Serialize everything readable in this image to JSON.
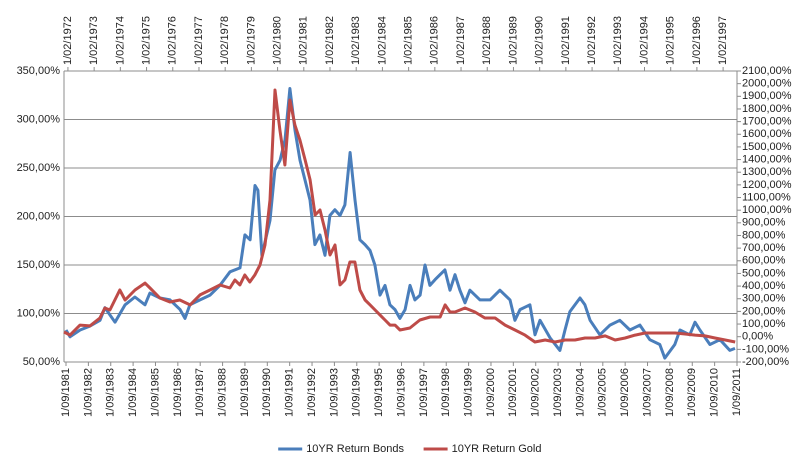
{
  "chart_data": {
    "type": "line",
    "xlim": [
      1981.58,
      2011.67
    ],
    "xticks": [
      {
        "value": 1981.67,
        "label": "1/09/1981"
      },
      {
        "value": 1982.67,
        "label": "1/09/1982"
      },
      {
        "value": 1983.67,
        "label": "1/09/1983"
      },
      {
        "value": 1984.67,
        "label": "1/09/1984"
      },
      {
        "value": 1985.67,
        "label": "1/09/1985"
      },
      {
        "value": 1986.67,
        "label": "1/09/1986"
      },
      {
        "value": 1987.67,
        "label": "1/09/1987"
      },
      {
        "value": 1988.67,
        "label": "1/09/1988"
      },
      {
        "value": 1989.67,
        "label": "1/09/1989"
      },
      {
        "value": 1990.67,
        "label": "1/09/1990"
      },
      {
        "value": 1991.67,
        "label": "1/09/1991"
      },
      {
        "value": 1992.67,
        "label": "1/09/1992"
      },
      {
        "value": 1993.67,
        "label": "1/09/1993"
      },
      {
        "value": 1994.67,
        "label": "1/09/1994"
      },
      {
        "value": 1995.67,
        "label": "1/09/1995"
      },
      {
        "value": 1996.67,
        "label": "1/09/1996"
      },
      {
        "value": 1997.67,
        "label": "1/09/1997"
      },
      {
        "value": 1998.67,
        "label": "1/09/1998"
      },
      {
        "value": 1999.67,
        "label": "1/09/1999"
      },
      {
        "value": 2000.67,
        "label": "1/09/2000"
      },
      {
        "value": 2001.67,
        "label": "1/09/2001"
      },
      {
        "value": 2002.67,
        "label": "1/09/2002"
      },
      {
        "value": 2003.67,
        "label": "1/09/2003"
      },
      {
        "value": 2004.67,
        "label": "1/09/2004"
      },
      {
        "value": 2005.67,
        "label": "1/09/2005"
      },
      {
        "value": 2006.67,
        "label": "1/09/2006"
      },
      {
        "value": 2007.67,
        "label": "1/09/2007"
      },
      {
        "value": 2008.67,
        "label": "1/09/2008"
      },
      {
        "value": 2009.67,
        "label": "1/09/2009"
      },
      {
        "value": 2010.67,
        "label": "1/09/2010"
      },
      {
        "value": 2011.67,
        "label": "1/09/2011"
      }
    ],
    "x2lim": [
      1971.93,
      1997.61
    ],
    "x2ticks": [
      {
        "value": 1972.08,
        "label": "1/02/1972"
      },
      {
        "value": 1973.08,
        "label": "1/02/1973"
      },
      {
        "value": 1974.08,
        "label": "1/02/1974"
      },
      {
        "value": 1975.08,
        "label": "1/02/1975"
      },
      {
        "value": 1976.08,
        "label": "1/02/1976"
      },
      {
        "value": 1977.08,
        "label": "1/02/1977"
      },
      {
        "value": 1978.08,
        "label": "1/02/1978"
      },
      {
        "value": 1979.08,
        "label": "1/02/1979"
      },
      {
        "value": 1980.08,
        "label": "1/02/1980"
      },
      {
        "value": 1981.08,
        "label": "1/02/1981"
      },
      {
        "value": 1982.08,
        "label": "1/02/1982"
      },
      {
        "value": 1983.08,
        "label": "1/02/1983"
      },
      {
        "value": 1984.08,
        "label": "1/02/1984"
      },
      {
        "value": 1985.08,
        "label": "1/02/1985"
      },
      {
        "value": 1986.08,
        "label": "1/02/1986"
      },
      {
        "value": 1987.08,
        "label": "1/02/1987"
      },
      {
        "value": 1988.08,
        "label": "1/02/1988"
      },
      {
        "value": 1989.08,
        "label": "1/02/1989"
      },
      {
        "value": 1990.08,
        "label": "1/02/1990"
      },
      {
        "value": 1991.08,
        "label": "1/02/1991"
      },
      {
        "value": 1992.08,
        "label": "1/02/1992"
      },
      {
        "value": 1993.08,
        "label": "1/02/1993"
      },
      {
        "value": 1994.08,
        "label": "1/02/1994"
      },
      {
        "value": 1995.08,
        "label": "1/02/1995"
      },
      {
        "value": 1996.08,
        "label": "1/02/1996"
      },
      {
        "value": 1997.08,
        "label": "1/02/1997"
      }
    ],
    "ylim": [
      50,
      350
    ],
    "yticks": [
      {
        "value": 50,
        "label": "50,00%"
      },
      {
        "value": 100,
        "label": "100,00%"
      },
      {
        "value": 150,
        "label": "150,00%"
      },
      {
        "value": 200,
        "label": "200,00%"
      },
      {
        "value": 250,
        "label": "250,00%"
      },
      {
        "value": 300,
        "label": "300,00%"
      },
      {
        "value": 350,
        "label": "350,00%"
      }
    ],
    "y2lim": [
      -200,
      2100
    ],
    "y2ticks": [
      {
        "value": -200,
        "label": "-200,00%"
      },
      {
        "value": -100,
        "label": "-100,00%"
      },
      {
        "value": 0,
        "label": "0,00%"
      },
      {
        "value": 100,
        "label": "100,00%"
      },
      {
        "value": 200,
        "label": "200,00%"
      },
      {
        "value": 300,
        "label": "300,00%"
      },
      {
        "value": 400,
        "label": "400,00%"
      },
      {
        "value": 500,
        "label": "500,00%"
      },
      {
        "value": 600,
        "label": "600,00%"
      },
      {
        "value": 700,
        "label": "700,00%"
      },
      {
        "value": 800,
        "label": "800,00%"
      },
      {
        "value": 900,
        "label": "900,00%"
      },
      {
        "value": 1000,
        "label": "1000,00%"
      },
      {
        "value": 1100,
        "label": "1100,00%"
      },
      {
        "value": 1200,
        "label": "1200,00%"
      },
      {
        "value": 1300,
        "label": "1300,00%"
      },
      {
        "value": 1400,
        "label": "1400,00%"
      },
      {
        "value": 1500,
        "label": "1500,00%"
      },
      {
        "value": 1600,
        "label": "1600,00%"
      },
      {
        "value": 1700,
        "label": "1700,00%"
      },
      {
        "value": 1800,
        "label": "1800,00%"
      },
      {
        "value": 1900,
        "label": "1900,00%"
      },
      {
        "value": 2000,
        "label": "2000,00%"
      },
      {
        "value": 2100,
        "label": "2100,00%"
      }
    ],
    "grid": true,
    "legend": "bottom",
    "series": [
      {
        "name": "10YR Return Bonds",
        "color": "#4a7ebb",
        "x": [
          1981.67,
          1981.85,
          1982.3,
          1982.74,
          1983.19,
          1983.41,
          1983.86,
          1984.31,
          1984.75,
          1985.2,
          1985.42,
          1985.87,
          1986.32,
          1986.77,
          1986.99,
          1987.21,
          1987.66,
          1988.11,
          1988.55,
          1989.0,
          1989.45,
          1989.67,
          1989.9,
          1990.12,
          1990.25,
          1990.43,
          1990.79,
          1991.01,
          1991.24,
          1991.46,
          1991.68,
          1991.91,
          1992.13,
          1992.35,
          1992.58,
          1992.8,
          1993.02,
          1993.25,
          1993.47,
          1993.69,
          1993.92,
          1994.14,
          1994.37,
          1994.59,
          1994.81,
          1995.04,
          1995.26,
          1995.48,
          1995.71,
          1995.93,
          1996.15,
          1996.38,
          1996.6,
          1996.83,
          1997.05,
          1997.27,
          1997.5,
          1997.72,
          1997.94,
          1998.17,
          1998.39,
          1998.61,
          1998.84,
          1999.06,
          1999.28,
          1999.51,
          1999.73,
          2000.18,
          2000.63,
          2001.07,
          2001.52,
          2001.74,
          2001.97,
          2002.41,
          2002.64,
          2002.86,
          2003.31,
          2003.75,
          2003.98,
          2004.2,
          2004.65,
          2004.87,
          2005.1,
          2005.54,
          2005.99,
          2006.43,
          2006.88,
          2007.33,
          2007.77,
          2008.22,
          2008.44,
          2008.89,
          2009.12,
          2009.56,
          2009.79,
          2010.01,
          2010.46,
          2010.91,
          2011.35,
          2011.58
        ],
        "values": [
          83,
          76,
          83,
          87,
          93,
          106,
          91,
          109,
          117,
          109,
          121,
          116,
          114,
          104,
          95,
          109,
          114,
          119,
          129,
          143,
          147,
          181,
          176,
          232,
          227,
          160,
          196,
          248,
          258,
          279,
          332,
          289,
          258,
          238,
          217,
          171,
          181,
          160,
          201,
          207,
          201,
          212,
          266,
          217,
          176,
          171,
          165,
          150,
          119,
          129,
          109,
          104,
          95,
          104,
          129,
          114,
          119,
          150,
          129,
          135,
          140,
          145,
          124,
          140,
          124,
          111,
          124,
          114,
          114,
          124,
          114,
          93,
          104,
          109,
          78,
          93,
          75,
          62,
          83,
          102,
          116,
          109,
          93,
          78,
          88,
          93,
          83,
          88,
          73,
          68,
          54,
          68,
          83,
          78,
          91,
          83,
          68,
          73,
          62,
          64
        ]
      },
      {
        "name": "10YR Return Gold",
        "color": "#be4b48",
        "axis": "y2",
        "xaxis": "x2",
        "x": [
          1971.93,
          1972.16,
          1972.54,
          1972.92,
          1973.3,
          1973.49,
          1973.68,
          1974.06,
          1974.26,
          1974.64,
          1975.02,
          1975.21,
          1975.59,
          1975.97,
          1976.35,
          1976.74,
          1977.12,
          1977.5,
          1977.88,
          1978.26,
          1978.45,
          1978.64,
          1978.83,
          1979.02,
          1979.21,
          1979.41,
          1979.6,
          1979.79,
          1979.98,
          1980.17,
          1980.36,
          1980.55,
          1980.74,
          1980.93,
          1981.13,
          1981.32,
          1981.51,
          1981.7,
          1981.89,
          1982.08,
          1982.27,
          1982.46,
          1982.65,
          1982.84,
          1983.03,
          1983.22,
          1983.42,
          1983.61,
          1983.8,
          1983.99,
          1984.18,
          1984.37,
          1984.56,
          1984.75,
          1985.13,
          1985.51,
          1985.9,
          1986.28,
          1986.47,
          1986.66,
          1986.85,
          1987.23,
          1987.61,
          1987.99,
          1988.38,
          1988.76,
          1989.14,
          1989.52,
          1989.9,
          1990.29,
          1990.67,
          1991.05,
          1991.43,
          1991.81,
          1992.19,
          1992.58,
          1992.96,
          1993.34,
          1993.72,
          1994.1,
          1994.48,
          1994.87,
          1995.25,
          1995.63,
          1996.01,
          1996.39,
          1996.77,
          1997.16,
          1997.54
        ],
        "values": [
          37,
          13,
          92,
          85,
          148,
          227,
          211,
          369,
          290,
          369,
          424,
          385,
          306,
          274,
          290,
          251,
          330,
          369,
          409,
          385,
          448,
          409,
          488,
          432,
          488,
          567,
          725,
          1081,
          1950,
          1634,
          1357,
          1871,
          1673,
          1555,
          1397,
          1239,
          962,
          1001,
          843,
          646,
          725,
          409,
          448,
          590,
          590,
          369,
          290,
          251,
          211,
          171,
          132,
          92,
          92,
          53,
          69,
          132,
          156,
          156,
          251,
          195,
          195,
          227,
          195,
          148,
          148,
          92,
          53,
          13,
          -42,
          -26,
          -42,
          -26,
          -26,
          -10,
          -10,
          6,
          -26,
          -10,
          13,
          29,
          29,
          29,
          29,
          21,
          13,
          6,
          -10,
          -26,
          -42
        ]
      }
    ]
  }
}
